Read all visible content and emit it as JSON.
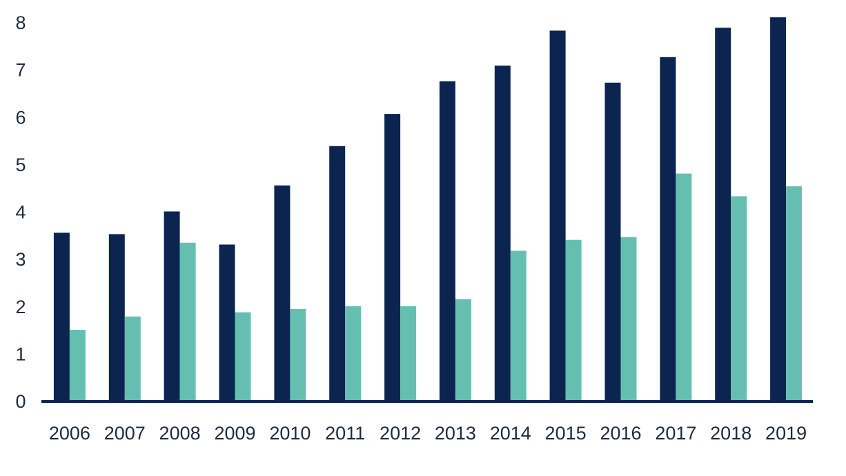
{
  "chart_data": {
    "type": "bar",
    "title": "",
    "xlabel": "",
    "ylabel": "",
    "categories": [
      "2006",
      "2007",
      "2008",
      "2009",
      "2010",
      "2011",
      "2012",
      "2013",
      "2014",
      "2015",
      "2016",
      "2017",
      "2018",
      "2019"
    ],
    "series": [
      {
        "color": "#0b2550",
        "values": [
          3.55,
          3.52,
          4.0,
          3.3,
          4.55,
          5.38,
          6.06,
          6.75,
          7.08,
          7.82,
          6.72,
          7.26,
          7.88,
          8.1
        ]
      },
      {
        "color": "#65bfb1",
        "values": [
          1.5,
          1.78,
          3.34,
          1.87,
          1.94,
          2.0,
          2.0,
          2.15,
          3.17,
          3.4,
          3.46,
          4.8,
          4.32,
          4.53
        ]
      }
    ],
    "yticks": [
      "0",
      "1",
      "2",
      "3",
      "4",
      "5",
      "6",
      "7",
      "8"
    ],
    "ylim": [
      0,
      8
    ],
    "grid": false,
    "legend": "none"
  }
}
